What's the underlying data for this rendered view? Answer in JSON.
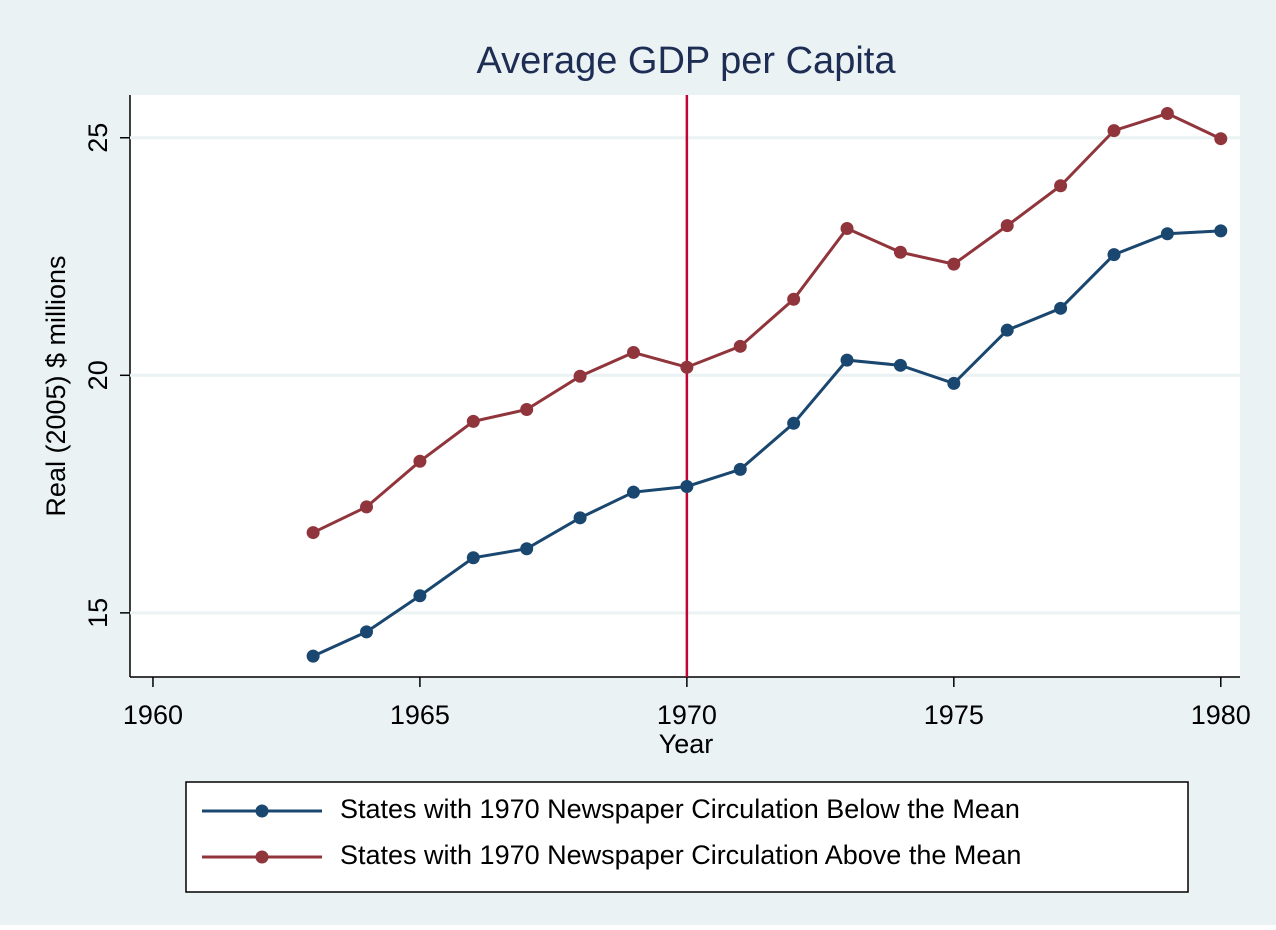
{
  "chart_data": {
    "type": "line",
    "title": "Average GDP per Capita",
    "x_label": "Year",
    "y_label": "Real (2005) $ millions",
    "x": [
      1963,
      1964,
      1965,
      1966,
      1967,
      1968,
      1969,
      1970,
      1971,
      1972,
      1973,
      1974,
      1975,
      1976,
      1977,
      1978,
      1979,
      1980
    ],
    "series": [
      {
        "name": "States with 1970 Newspaper Circulation Below the Mean",
        "color": "#1a476f",
        "values": [
          14.09,
          14.6,
          15.36,
          16.16,
          16.35,
          17.0,
          17.54,
          17.66,
          18.02,
          18.99,
          20.32,
          20.21,
          19.83,
          20.95,
          21.41,
          22.54,
          22.98,
          23.04
        ]
      },
      {
        "name": "States with 1970 Newspaper Circulation Above the Mean",
        "color": "#90353b",
        "values": [
          16.69,
          17.23,
          18.19,
          19.03,
          19.28,
          19.98,
          20.48,
          20.17,
          20.61,
          21.6,
          23.09,
          22.59,
          22.34,
          23.15,
          23.99,
          25.15,
          25.51,
          24.98
        ]
      }
    ],
    "xlim": [
      1959.57,
      1980.36
    ],
    "xticks": [
      1960,
      1965,
      1970,
      1975,
      1980
    ],
    "ylim": [
      13.65,
      25.9
    ],
    "yticks": [
      15,
      20,
      25
    ],
    "grid": true,
    "legend": "bottom",
    "vline": {
      "x": 1970,
      "color": "#c10534"
    }
  }
}
